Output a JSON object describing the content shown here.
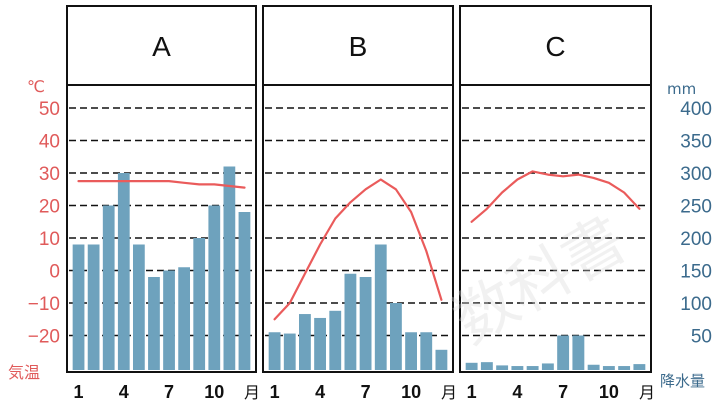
{
  "axes": {
    "temp_unit": "℃",
    "temp_label": "気温",
    "temp_ticks": [
      50,
      40,
      30,
      20,
      10,
      0,
      -10,
      -20
    ],
    "precip_unit": "mm",
    "precip_label": "降水量",
    "precip_ticks": [
      400,
      350,
      300,
      250,
      200,
      150,
      100,
      50
    ],
    "month_ticks": [
      "1",
      "4",
      "7",
      "10"
    ],
    "month_label": "月"
  },
  "watermark": "数科書",
  "colors": {
    "temperature": "#ea5b5b",
    "precipitation": "#6ea2bd",
    "grid": "#111111"
  },
  "chart_data": [
    {
      "type": "bar",
      "title": "A",
      "categories": [
        "1",
        "2",
        "3",
        "4",
        "5",
        "6",
        "7",
        "8",
        "9",
        "10",
        "11",
        "12"
      ],
      "series": [
        {
          "type": "bar",
          "axis": "right",
          "values": [
            190,
            190,
            250,
            300,
            190,
            140,
            150,
            155,
            200,
            250,
            310,
            240
          ]
        },
        {
          "type": "line",
          "axis": "left",
          "values": [
            27.5,
            27.5,
            27.5,
            27.5,
            27.5,
            27.5,
            27.5,
            27,
            26.5,
            26.5,
            26,
            25.5
          ]
        }
      ],
      "ylim_left": [
        -30,
        60
      ],
      "ylim_right": [
        0,
        450
      ],
      "grid": true
    },
    {
      "type": "bar",
      "title": "B",
      "categories": [
        "1",
        "2",
        "3",
        "4",
        "5",
        "6",
        "7",
        "8",
        "9",
        "10",
        "11",
        "12"
      ],
      "series": [
        {
          "type": "bar",
          "axis": "right",
          "values": [
            55,
            53,
            83,
            77,
            88,
            145,
            140,
            190,
            100,
            55,
            55,
            28
          ]
        },
        {
          "type": "line",
          "axis": "left",
          "values": [
            -15,
            -10,
            -1,
            8,
            16,
            21,
            25,
            28,
            25,
            18,
            6,
            -9
          ]
        }
      ],
      "ylim_left": [
        -30,
        60
      ],
      "ylim_right": [
        0,
        450
      ],
      "grid": true
    },
    {
      "type": "bar",
      "title": "C",
      "categories": [
        "1",
        "2",
        "3",
        "4",
        "5",
        "6",
        "7",
        "8",
        "9",
        "10",
        "11",
        "12"
      ],
      "series": [
        {
          "type": "bar",
          "axis": "right",
          "values": [
            8,
            9,
            4,
            3,
            3,
            7,
            50,
            50,
            5,
            3,
            3,
            6
          ]
        },
        {
          "type": "line",
          "axis": "left",
          "values": [
            15,
            19,
            24,
            28,
            30.5,
            29.5,
            29,
            29.5,
            28.5,
            27,
            24,
            19
          ]
        }
      ],
      "ylim_left": [
        -30,
        60
      ],
      "ylim_right": [
        0,
        450
      ],
      "grid": true
    }
  ]
}
